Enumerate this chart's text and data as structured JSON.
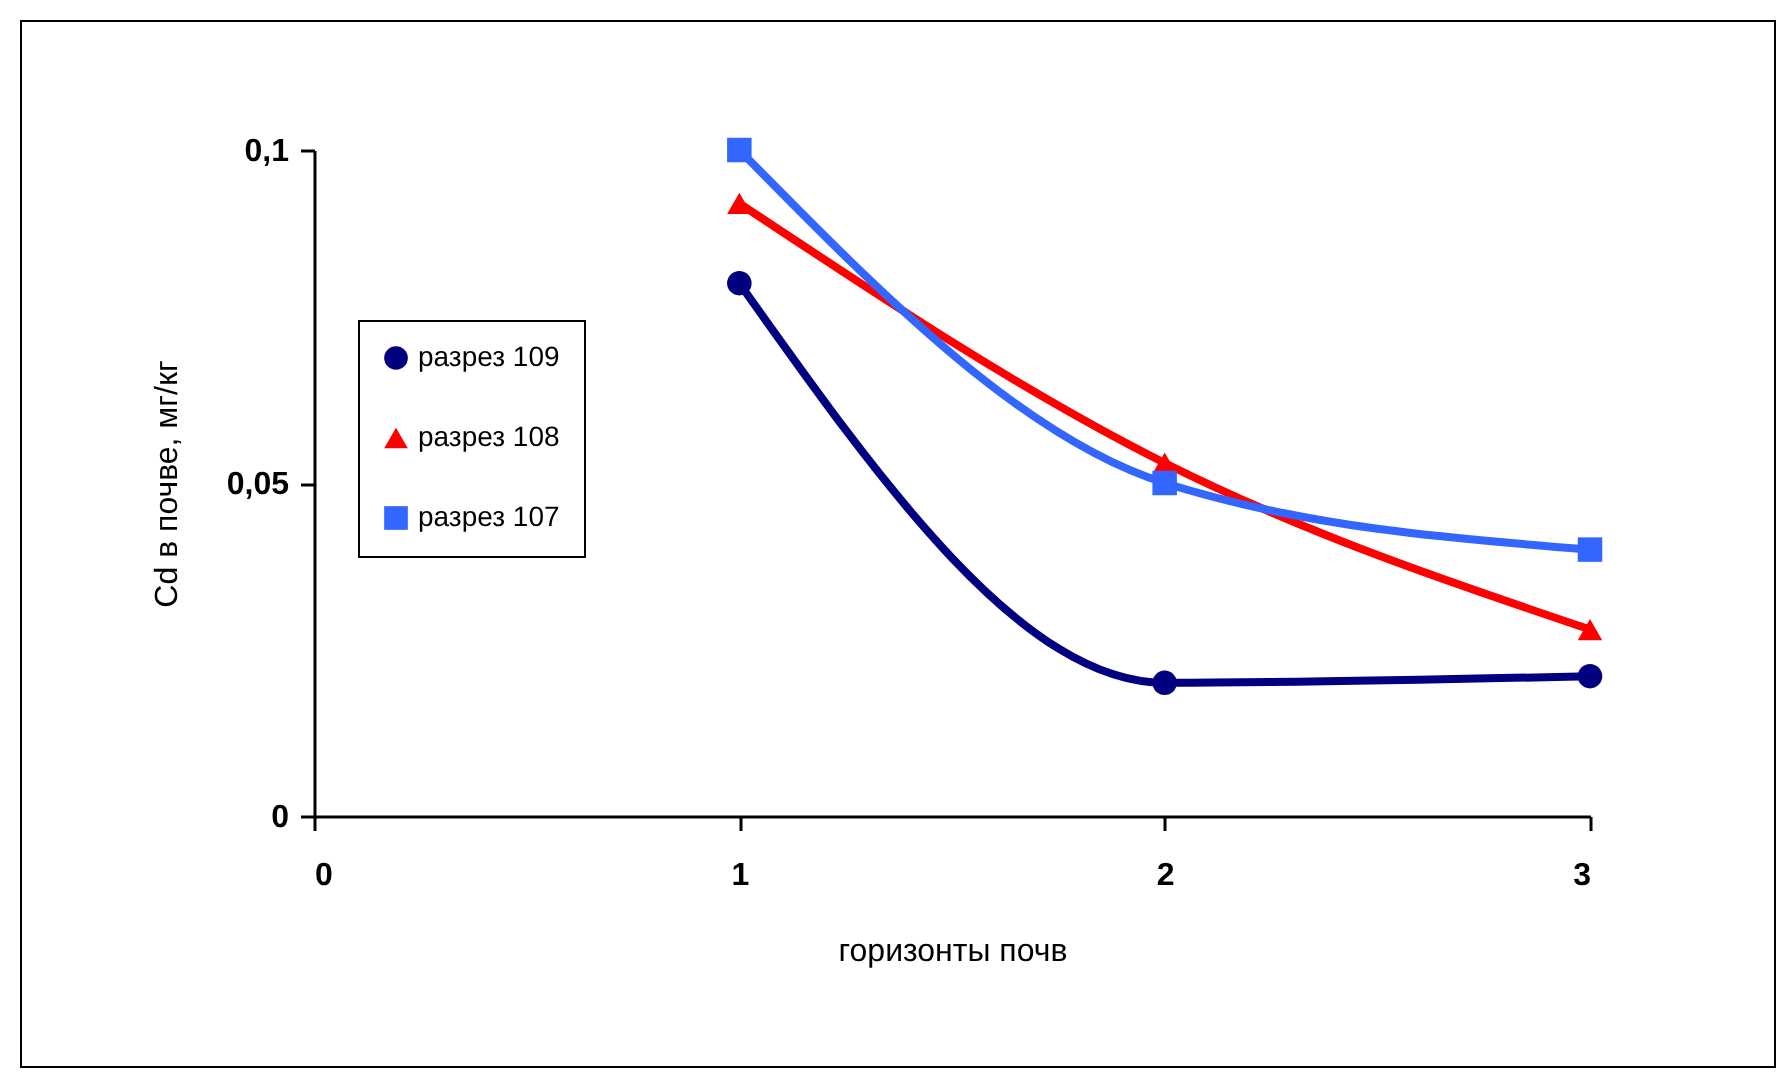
{
  "chart_data": {
    "type": "line",
    "xlabel": "горизонты почв",
    "ylabel": "Cd в почве, мг/кг",
    "x": [
      1,
      2,
      3
    ],
    "series": [
      {
        "name": "разрез 109",
        "color": "#000080",
        "marker": "circle",
        "values": [
          0.08,
          0.02,
          0.021
        ]
      },
      {
        "name": "разрез 108",
        "color": "#ff0000",
        "marker": "triangle",
        "values": [
          0.092,
          0.053,
          0.028
        ]
      },
      {
        "name": "разрез 107",
        "color": "#3366ff",
        "marker": "square",
        "values": [
          0.1,
          0.05,
          0.04
        ]
      }
    ],
    "xlim": [
      0,
      3
    ],
    "xticks": [
      0,
      1,
      2,
      3
    ],
    "ylim": [
      0,
      0.1
    ],
    "yticks": [
      {
        "value": 0,
        "label": "0"
      },
      {
        "value": 0.05,
        "label": "0,05"
      },
      {
        "value": 0.1,
        "label": "0,1"
      }
    ],
    "grid": false,
    "legend": "left"
  }
}
